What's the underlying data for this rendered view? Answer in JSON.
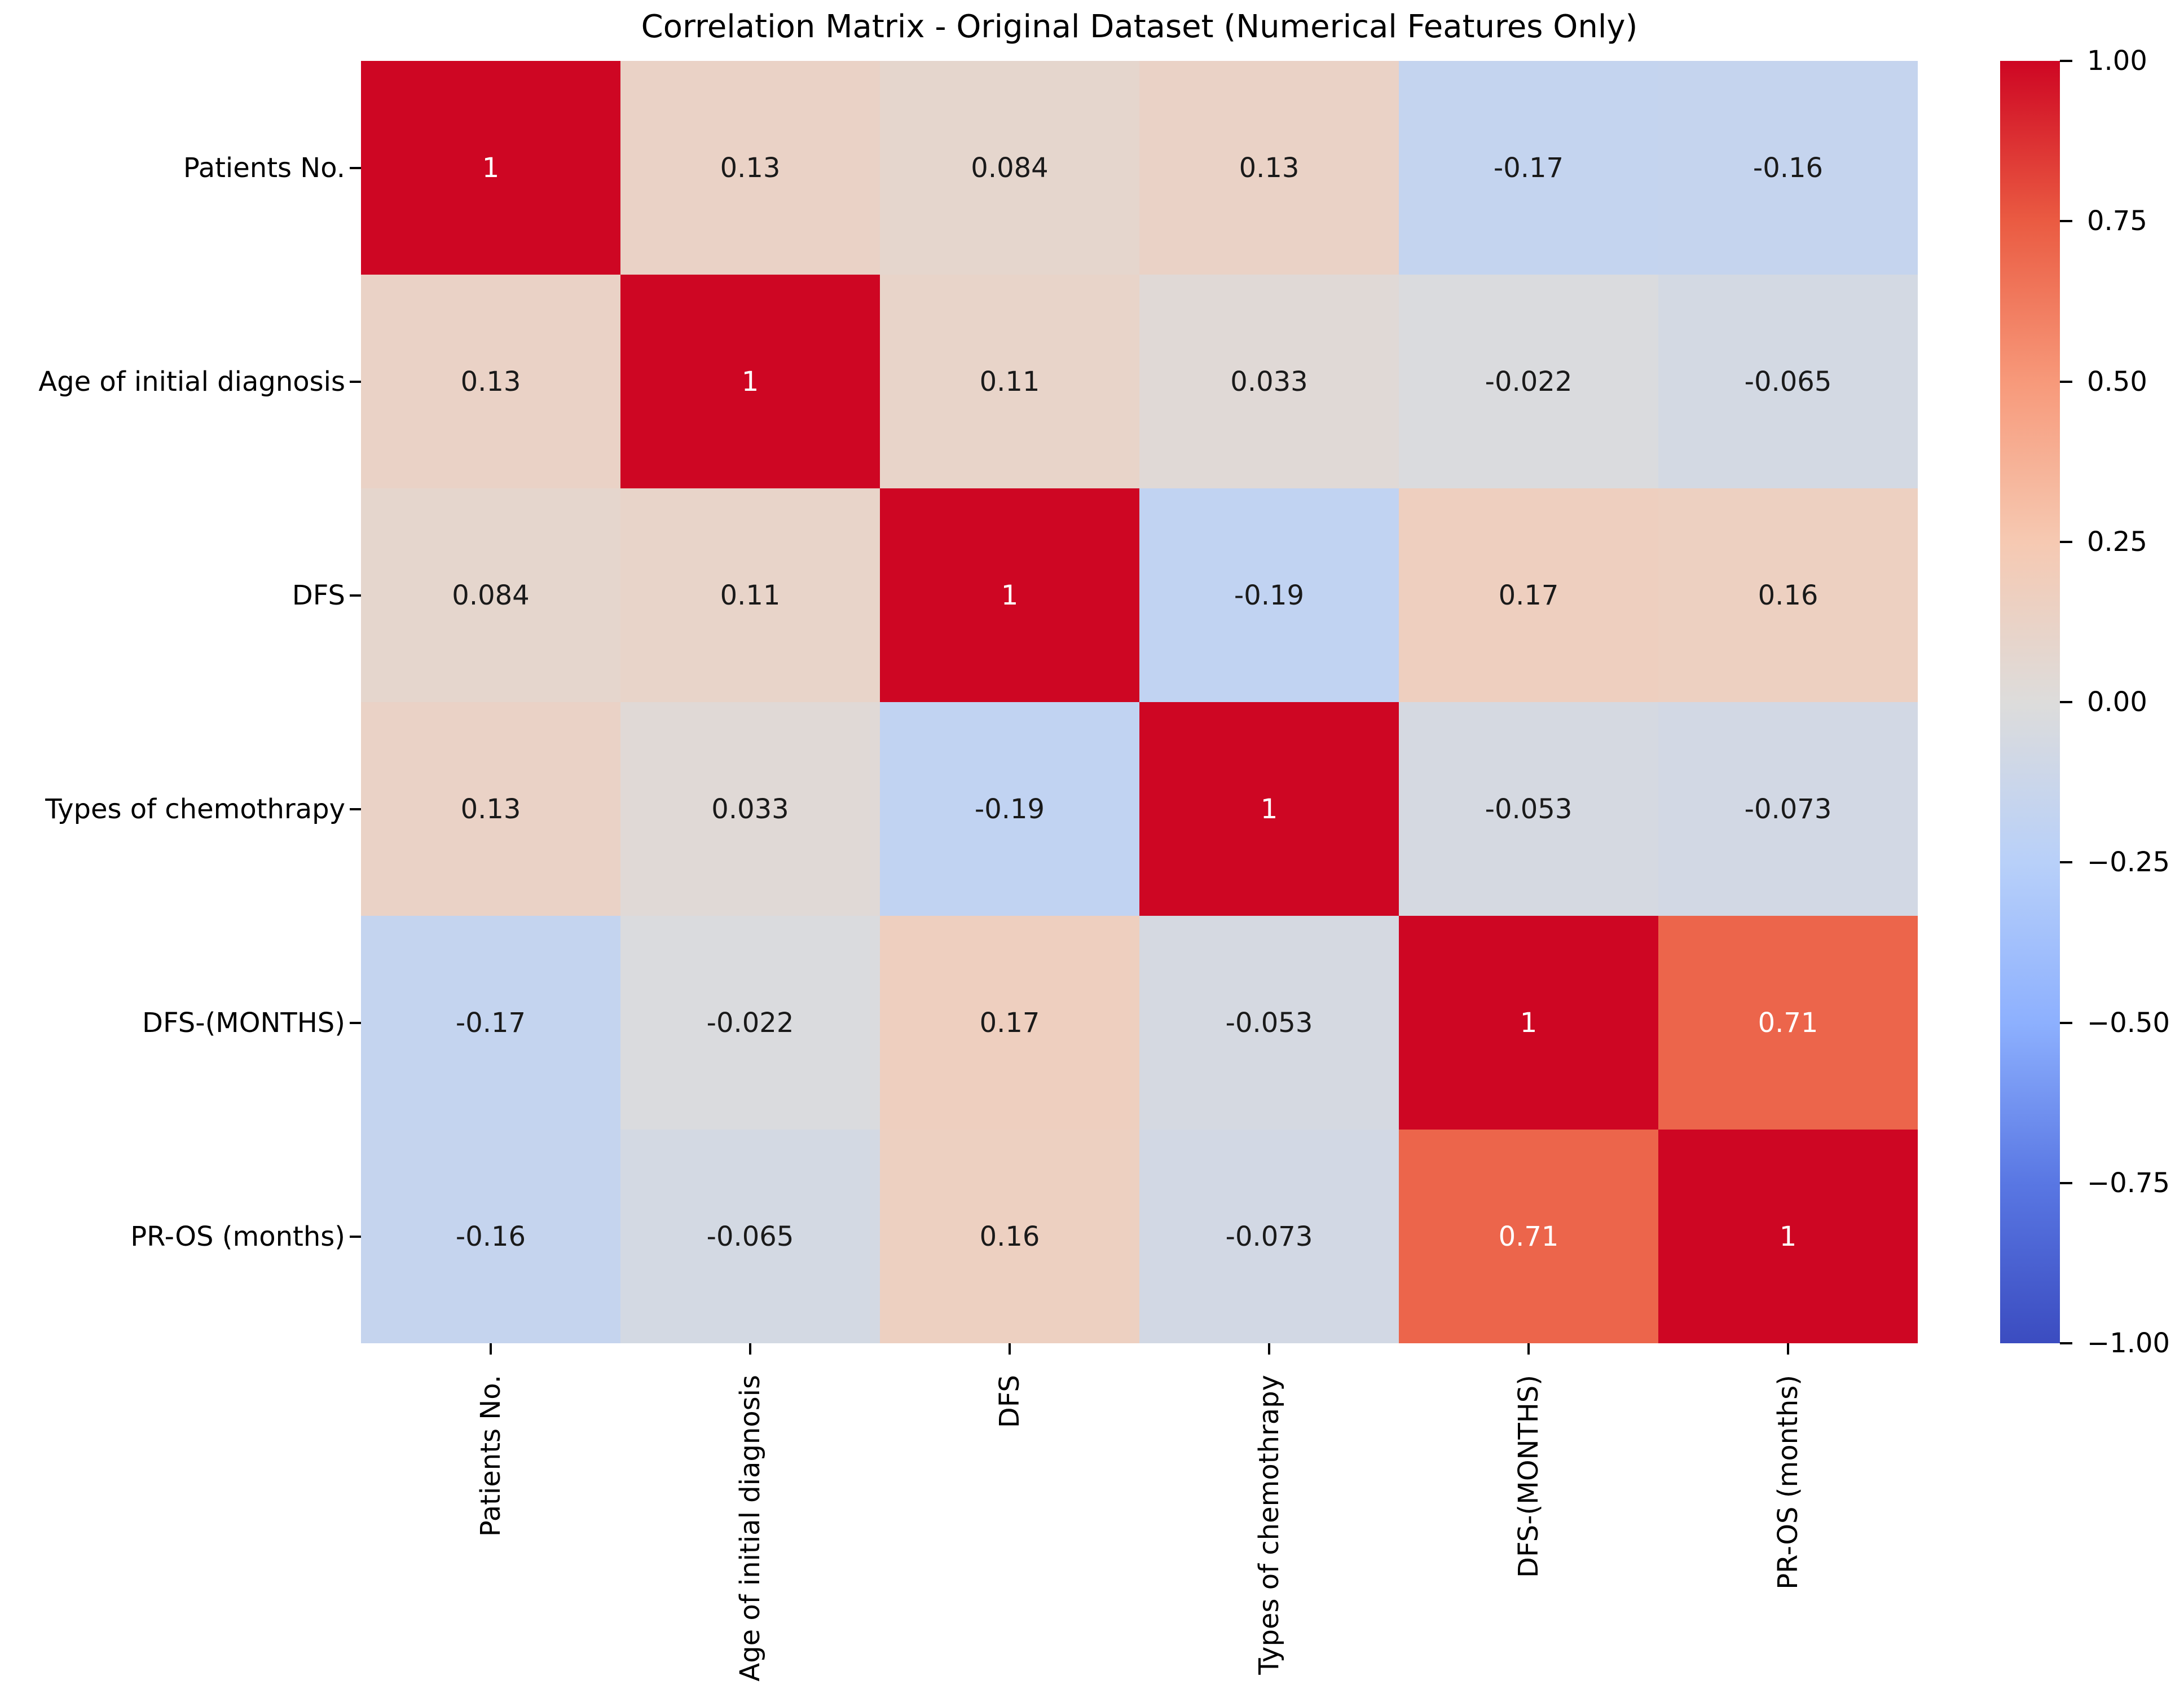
{
  "chart_data": {
    "type": "heatmap",
    "title": "Correlation Matrix - Original Dataset (Numerical Features Only)",
    "categories": [
      "Patients No.",
      "Age of initial diagnosis",
      "DFS",
      "Types of chemothrapy",
      "DFS-(MONTHS)",
      "PR-OS (months)"
    ],
    "values": [
      [
        1,
        0.13,
        0.084,
        0.13,
        -0.17,
        -0.16
      ],
      [
        0.13,
        1,
        0.11,
        0.033,
        -0.022,
        -0.065
      ],
      [
        0.084,
        0.11,
        1,
        -0.19,
        0.17,
        0.16
      ],
      [
        0.13,
        0.033,
        -0.19,
        1,
        -0.053,
        -0.073
      ],
      [
        -0.17,
        -0.022,
        0.17,
        -0.053,
        1,
        0.71
      ],
      [
        -0.16,
        -0.065,
        0.16,
        -0.073,
        0.71,
        1
      ]
    ],
    "labels": [
      [
        "1",
        "0.13",
        "0.084",
        "0.13",
        "-0.17",
        "-0.16"
      ],
      [
        "0.13",
        "1",
        "0.11",
        "0.033",
        "-0.022",
        "-0.065"
      ],
      [
        "0.084",
        "0.11",
        "1",
        "-0.19",
        "0.17",
        "0.16"
      ],
      [
        "0.13",
        "0.033",
        "-0.19",
        "1",
        "-0.053",
        "-0.073"
      ],
      [
        "-0.17",
        "-0.022",
        "0.17",
        "-0.053",
        "1",
        "0.71"
      ],
      [
        "-0.16",
        "-0.065",
        "0.16",
        "-0.073",
        "0.71",
        "1"
      ]
    ],
    "value_range": [
      -1,
      1
    ],
    "colormap": "coolwarm",
    "grid": false,
    "legend_position": "right-colorbar",
    "colorbar_ticks": [
      {
        "value": 1.0,
        "label": "1.00"
      },
      {
        "value": 0.75,
        "label": "0.75"
      },
      {
        "value": 0.5,
        "label": "0.50"
      },
      {
        "value": 0.25,
        "label": "0.25"
      },
      {
        "value": 0.0,
        "label": "0.00"
      },
      {
        "value": -0.25,
        "label": "−0.25"
      },
      {
        "value": -0.5,
        "label": "−0.50"
      },
      {
        "value": -0.75,
        "label": "−0.75"
      },
      {
        "value": -1.0,
        "label": "−1.00"
      }
    ]
  },
  "colors": {
    "background": "#ffffff",
    "title_text": "#000000",
    "tick_text": "#000000",
    "annotation_dark": "#1a1a1a",
    "annotation_light": "#ffffff",
    "colormap_anchors": [
      {
        "t": 0.0,
        "hex": "#3B4CC0"
      },
      {
        "t": 0.125,
        "hex": "#5977E3"
      },
      {
        "t": 0.25,
        "hex": "#8DB0FE"
      },
      {
        "t": 0.375,
        "hex": "#B8D0F9"
      },
      {
        "t": 0.5,
        "hex": "#DDDCDB"
      },
      {
        "t": 0.625,
        "hex": "#F6C9B2"
      },
      {
        "t": 0.75,
        "hex": "#F7997A"
      },
      {
        "t": 0.875,
        "hex": "#EA5B42"
      },
      {
        "t": 1.0,
        "hex": "#CE0623"
      }
    ]
  }
}
